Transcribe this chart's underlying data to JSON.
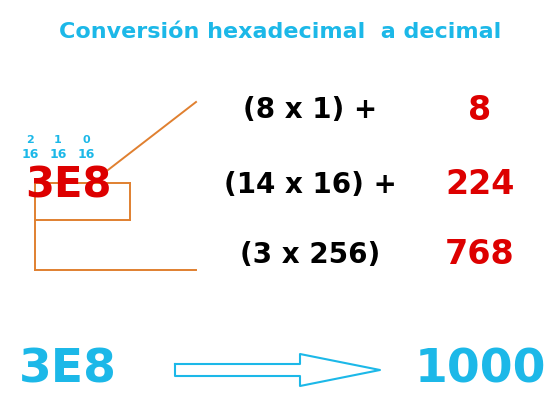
{
  "title": "Conversión hexadecimal  a decimal",
  "title_color": "#1CB8E8",
  "title_fontsize": 16,
  "bg_color": "#FFFFFF",
  "cyan": "#1CB8E8",
  "red": "#DD0000",
  "orange": "#E08030",
  "black": "#000000",
  "hex_label": "3E8",
  "result_label": "1000",
  "rows": [
    {
      "expr": "(8 x 1) +",
      "value": "8"
    },
    {
      "expr": "(14 x 16) +",
      "value": "224"
    },
    {
      "expr": "(3 x 256)",
      "value": "768"
    }
  ],
  "power_labels": [
    "2",
    "1",
    "0"
  ],
  "base_labels": [
    "16",
    "16",
    "16"
  ],
  "figsize": [
    5.6,
    4.13
  ],
  "dpi": 100,
  "xlim": [
    0,
    560
  ],
  "ylim": [
    0,
    413
  ]
}
